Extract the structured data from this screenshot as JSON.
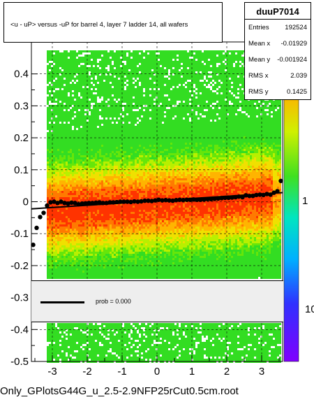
{
  "title": "<u - uP>       versus  -uP for barrel 4, layer 7 ladder 14, all  wafers",
  "stats": {
    "name": "duuP7014",
    "rows": [
      {
        "label": "Entries",
        "value": "192524"
      },
      {
        "label": "Mean x",
        "value": "-0.01929"
      },
      {
        "label": "Mean y",
        "value": "-0.001924"
      },
      {
        "label": "RMS x",
        "value": "2.039"
      },
      {
        "label": "RMS y",
        "value": "0.1425"
      }
    ]
  },
  "fit_legend": {
    "label": "prob = 0.000"
  },
  "footer": "Only_GPlotsG44G_u_2.5-2.9NFP25rCut0.5cm.root",
  "colors": {
    "profile": "#000000",
    "fit": "#000000"
  },
  "chart_data": {
    "type": "heatmap",
    "xlim": [
      -3.6,
      3.6
    ],
    "ylim": [
      -0.5,
      0.5
    ],
    "x_ticks": [
      -3,
      -2,
      -1,
      0,
      1,
      2,
      3
    ],
    "y_ticks": [
      -0.5,
      -0.4,
      -0.3,
      -0.2,
      -0.1,
      0,
      0.1,
      0.2,
      0.3,
      0.4
    ],
    "z_scale": "log",
    "z_ticks": [
      "1",
      "10"
    ],
    "grid": true,
    "profile": {
      "x": [
        -3.55,
        -3.45,
        -3.35,
        -3.25,
        -3.15,
        -3.05,
        -2.95,
        -2.85,
        -2.75,
        -2.65,
        -2.55,
        -2.45,
        -2.35,
        -2.25,
        -2.15,
        -2.05,
        -1.95,
        -1.85,
        -1.75,
        -1.65,
        -1.55,
        -1.45,
        -1.35,
        -1.25,
        -1.15,
        -1.05,
        -0.95,
        -0.85,
        -0.75,
        -0.65,
        -0.55,
        -0.45,
        -0.35,
        -0.25,
        -0.15,
        -0.05,
        0.05,
        0.15,
        0.25,
        0.35,
        0.45,
        0.55,
        0.65,
        0.75,
        0.85,
        0.95,
        1.05,
        1.15,
        1.25,
        1.35,
        1.45,
        1.55,
        1.65,
        1.75,
        1.85,
        1.95,
        2.05,
        2.15,
        2.25,
        2.35,
        2.45,
        2.55,
        2.65,
        2.75,
        2.85,
        2.95,
        3.05,
        3.15,
        3.25,
        3.35,
        3.45,
        3.55
      ],
      "y": [
        -0.135,
        -0.082,
        -0.048,
        -0.035,
        -0.012,
        -0.002,
        0.0,
        -0.004,
        0.0,
        -0.004,
        -0.006,
        -0.003,
        -0.004,
        -0.008,
        -0.006,
        -0.005,
        -0.004,
        -0.004,
        -0.003,
        -0.002,
        -0.004,
        -0.004,
        -0.002,
        -0.002,
        -0.001,
        0.0,
        0.0,
        0.0,
        -0.001,
        0.001,
        0.0,
        0.001,
        0.003,
        0.003,
        0.002,
        0.004,
        0.006,
        0.004,
        0.005,
        0.004,
        0.003,
        0.005,
        0.006,
        0.005,
        0.006,
        0.006,
        0.007,
        0.006,
        0.006,
        0.007,
        0.008,
        0.008,
        0.009,
        0.01,
        0.011,
        0.012,
        0.012,
        0.013,
        0.014,
        0.016,
        0.014,
        0.02,
        0.018,
        0.018,
        0.021,
        0.022,
        0.021,
        0.024,
        0.022,
        0.028,
        0.033,
        0.065
      ]
    },
    "fit_line": {
      "x": [
        -3.6,
        3.6
      ],
      "y": [
        -0.0225,
        0.0285
      ]
    }
  }
}
